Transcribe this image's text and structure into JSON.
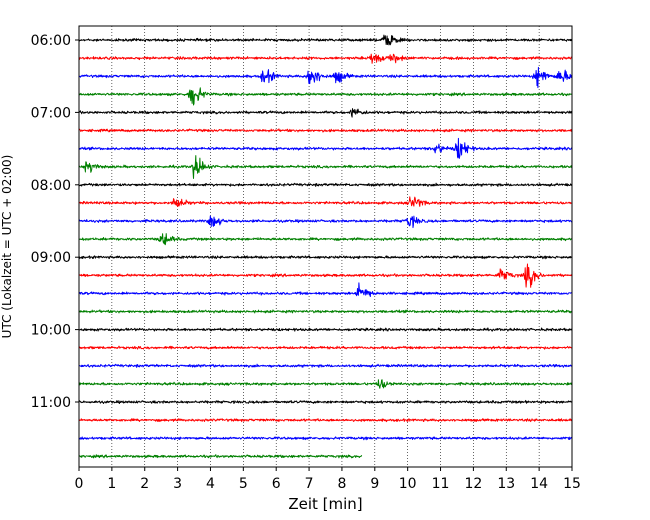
{
  "chart_data": {
    "type": "line",
    "title": "",
    "xlabel": "Zeit  [min]",
    "ylabel": "UTC (Lokalzeit = UTC + 02:00)",
    "xlim": [
      0,
      15
    ],
    "xticks": [
      0,
      1,
      2,
      3,
      4,
      5,
      6,
      7,
      8,
      9,
      10,
      11,
      12,
      13,
      14,
      15
    ],
    "grid": "vertical dotted",
    "y_tick_labels": [
      "06:00",
      "07:00",
      "08:00",
      "09:00",
      "10:00",
      "11:00"
    ],
    "rows_per_hour": 4,
    "trace_colors": [
      "#000000",
      "#ff0000",
      "#0000ff",
      "#008000"
    ],
    "traces": [
      {
        "start": "06:00",
        "color": "#000000",
        "end_min": 15,
        "events": [
          {
            "t": 9.3,
            "amp": 7
          }
        ]
      },
      {
        "start": "06:15",
        "color": "#ff0000",
        "end_min": 15,
        "events": [
          {
            "t": 8.9,
            "amp": 6
          },
          {
            "t": 9.5,
            "amp": 4
          }
        ]
      },
      {
        "start": "06:30",
        "color": "#0000ff",
        "end_min": 15,
        "events": [
          {
            "t": 5.6,
            "amp": 7
          },
          {
            "t": 7.0,
            "amp": 11
          },
          {
            "t": 7.8,
            "amp": 6
          },
          {
            "t": 13.9,
            "amp": 10
          },
          {
            "t": 14.6,
            "amp": 7
          }
        ]
      },
      {
        "start": "06:45",
        "color": "#008000",
        "end_min": 15,
        "events": [
          {
            "t": 3.4,
            "amp": 12
          }
        ]
      },
      {
        "start": "07:00",
        "color": "#000000",
        "end_min": 15,
        "events": [
          {
            "t": 8.3,
            "amp": 4
          }
        ]
      },
      {
        "start": "07:15",
        "color": "#ff0000",
        "end_min": 15,
        "events": []
      },
      {
        "start": "07:30",
        "color": "#0000ff",
        "end_min": 15,
        "events": [
          {
            "t": 11.5,
            "amp": 11
          },
          {
            "t": 10.8,
            "amp": 5
          }
        ]
      },
      {
        "start": "07:45",
        "color": "#008000",
        "end_min": 15,
        "events": [
          {
            "t": 3.5,
            "amp": 10
          },
          {
            "t": 0.2,
            "amp": 6
          }
        ]
      },
      {
        "start": "08:00",
        "color": "#000000",
        "end_min": 15,
        "events": []
      },
      {
        "start": "08:15",
        "color": "#ff0000",
        "end_min": 15,
        "events": [
          {
            "t": 2.9,
            "amp": 5
          },
          {
            "t": 10.1,
            "amp": 7
          }
        ]
      },
      {
        "start": "08:30",
        "color": "#0000ff",
        "end_min": 15,
        "events": [
          {
            "t": 4.0,
            "amp": 6
          },
          {
            "t": 10.0,
            "amp": 6
          }
        ]
      },
      {
        "start": "08:45",
        "color": "#008000",
        "end_min": 15,
        "events": [
          {
            "t": 2.5,
            "amp": 6
          }
        ]
      },
      {
        "start": "09:00",
        "color": "#000000",
        "end_min": 15,
        "events": []
      },
      {
        "start": "09:15",
        "color": "#ff0000",
        "end_min": 15,
        "events": [
          {
            "t": 12.8,
            "amp": 6
          },
          {
            "t": 13.6,
            "amp": 11
          }
        ]
      },
      {
        "start": "09:30",
        "color": "#0000ff",
        "end_min": 15,
        "events": [
          {
            "t": 8.5,
            "amp": 8
          }
        ]
      },
      {
        "start": "09:45",
        "color": "#008000",
        "end_min": 15,
        "events": []
      },
      {
        "start": "10:00",
        "color": "#000000",
        "end_min": 15,
        "events": []
      },
      {
        "start": "10:15",
        "color": "#ff0000",
        "end_min": 15,
        "events": []
      },
      {
        "start": "10:30",
        "color": "#0000ff",
        "end_min": 15,
        "events": []
      },
      {
        "start": "10:45",
        "color": "#008000",
        "end_min": 15,
        "events": [
          {
            "t": 9.1,
            "amp": 5
          }
        ]
      },
      {
        "start": "11:00",
        "color": "#000000",
        "end_min": 15,
        "events": []
      },
      {
        "start": "11:15",
        "color": "#ff0000",
        "end_min": 15,
        "events": []
      },
      {
        "start": "11:30",
        "color": "#0000ff",
        "end_min": 15,
        "events": []
      },
      {
        "start": "11:45",
        "color": "#008000",
        "end_min": 8.6,
        "events": []
      }
    ]
  }
}
